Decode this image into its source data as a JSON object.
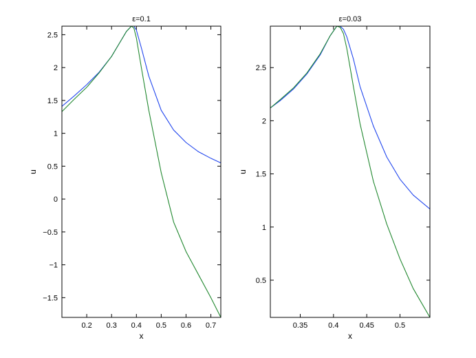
{
  "chart_data": [
    {
      "type": "line",
      "title": "ε=0.1",
      "xlabel": "x",
      "ylabel": "u",
      "xlim": [
        0.1,
        0.74
      ],
      "ylim": [
        -1.8,
        2.63
      ],
      "xticks": [
        0.2,
        0.3,
        0.4,
        0.5,
        0.6,
        0.7
      ],
      "yticks": [
        -1.5,
        -1,
        -0.5,
        0,
        0.5,
        1,
        1.5,
        2,
        2.5
      ],
      "xtick_labels": [
        "0.2",
        "0.3",
        "0.4",
        "0.5",
        "0.6",
        "0.7"
      ],
      "ytick_labels": [
        "−1.5",
        "−1",
        "−0.5",
        "0",
        "0.5",
        "1",
        "1.5",
        "2",
        "2.5"
      ],
      "grid": false,
      "series": [
        {
          "color": "#2146ee",
          "x": [
            0.1,
            0.15,
            0.2,
            0.25,
            0.3,
            0.33,
            0.36,
            0.38,
            0.39,
            0.4,
            0.42,
            0.45,
            0.5,
            0.55,
            0.6,
            0.65,
            0.7,
            0.74
          ],
          "y": [
            1.41,
            1.57,
            1.74,
            1.93,
            2.17,
            2.36,
            2.55,
            2.63,
            2.63,
            2.57,
            2.3,
            1.87,
            1.35,
            1.05,
            0.86,
            0.72,
            0.62,
            0.55
          ]
        },
        {
          "color": "#21882f",
          "x": [
            0.1,
            0.15,
            0.2,
            0.25,
            0.3,
            0.33,
            0.36,
            0.38,
            0.39,
            0.4,
            0.42,
            0.45,
            0.5,
            0.55,
            0.6,
            0.65,
            0.7,
            0.74
          ],
          "y": [
            1.33,
            1.52,
            1.7,
            1.92,
            2.17,
            2.36,
            2.55,
            2.63,
            2.6,
            2.45,
            2.0,
            1.35,
            0.4,
            -0.35,
            -0.8,
            -1.15,
            -1.5,
            -1.8
          ]
        }
      ]
    },
    {
      "type": "line",
      "title": "ε=0.03",
      "xlabel": "x",
      "ylabel": "u",
      "xlim": [
        0.305,
        0.545
      ],
      "ylim": [
        0.15,
        2.89
      ],
      "xticks": [
        0.35,
        0.4,
        0.45,
        0.5
      ],
      "yticks": [
        0.5,
        1,
        1.5,
        2,
        2.5
      ],
      "xtick_labels": [
        "0.35",
        "0.4",
        "0.45",
        "0.5"
      ],
      "ytick_labels": [
        "0.5",
        "1",
        "1.5",
        "2",
        "2.5"
      ],
      "grid": false,
      "series": [
        {
          "color": "#2146ee",
          "x": [
            0.305,
            0.32,
            0.34,
            0.36,
            0.38,
            0.395,
            0.405,
            0.41,
            0.415,
            0.42,
            0.43,
            0.44,
            0.46,
            0.48,
            0.5,
            0.52,
            0.545
          ],
          "y": [
            2.12,
            2.19,
            2.3,
            2.44,
            2.62,
            2.8,
            2.89,
            2.89,
            2.86,
            2.79,
            2.58,
            2.32,
            1.95,
            1.66,
            1.45,
            1.3,
            1.17
          ]
        },
        {
          "color": "#21882f",
          "x": [
            0.305,
            0.32,
            0.34,
            0.36,
            0.38,
            0.395,
            0.405,
            0.41,
            0.415,
            0.42,
            0.43,
            0.44,
            0.46,
            0.48,
            0.5,
            0.52,
            0.545
          ],
          "y": [
            2.12,
            2.2,
            2.31,
            2.45,
            2.63,
            2.8,
            2.89,
            2.88,
            2.82,
            2.68,
            2.32,
            1.97,
            1.43,
            1.03,
            0.7,
            0.42,
            0.15
          ]
        }
      ]
    }
  ]
}
